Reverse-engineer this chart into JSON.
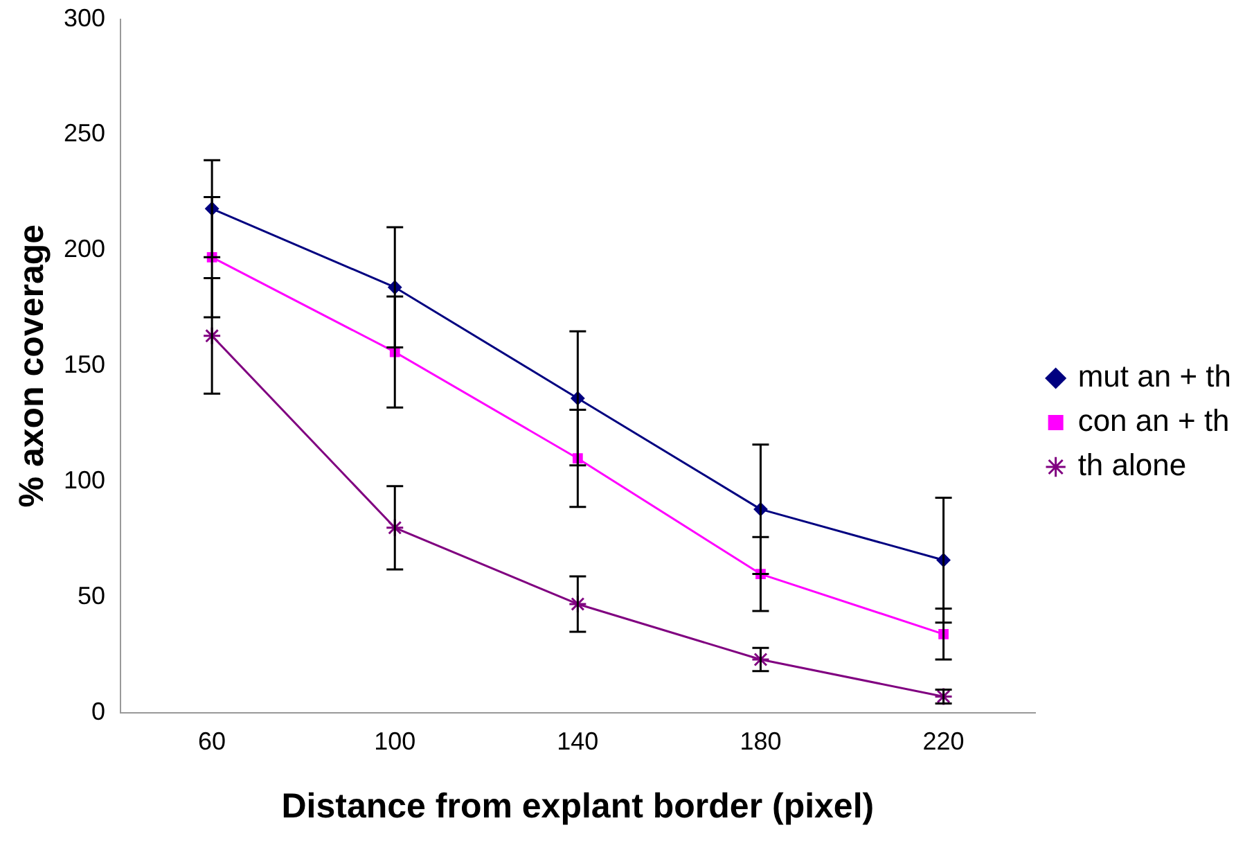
{
  "chart_data": {
    "type": "line",
    "xlabel": "Distance from explant border (pixel)",
    "ylabel": "% axon coverage",
    "categories": [
      "60",
      "100",
      "140",
      "180",
      "220"
    ],
    "series": [
      {
        "name": "mut an + th",
        "color": "#000080",
        "marker": "diamond",
        "values": [
          218,
          184,
          136,
          88,
          66
        ],
        "errors": [
          21,
          26,
          29,
          28,
          27
        ]
      },
      {
        "name": "con an + th",
        "color": "#ff00ff",
        "marker": "square",
        "values": [
          197,
          156,
          110,
          60,
          34
        ],
        "errors": [
          26,
          24,
          21,
          16,
          11
        ]
      },
      {
        "name": "th alone",
        "color": "#800080",
        "marker": "cross",
        "values": [
          163,
          80,
          47,
          23,
          7
        ],
        "errors": [
          25,
          18,
          12,
          5,
          3
        ]
      }
    ],
    "ylim": [
      0,
      300
    ],
    "yticks": [
      0,
      50,
      100,
      150,
      200,
      250,
      300
    ],
    "grid": false,
    "legend": "right"
  }
}
